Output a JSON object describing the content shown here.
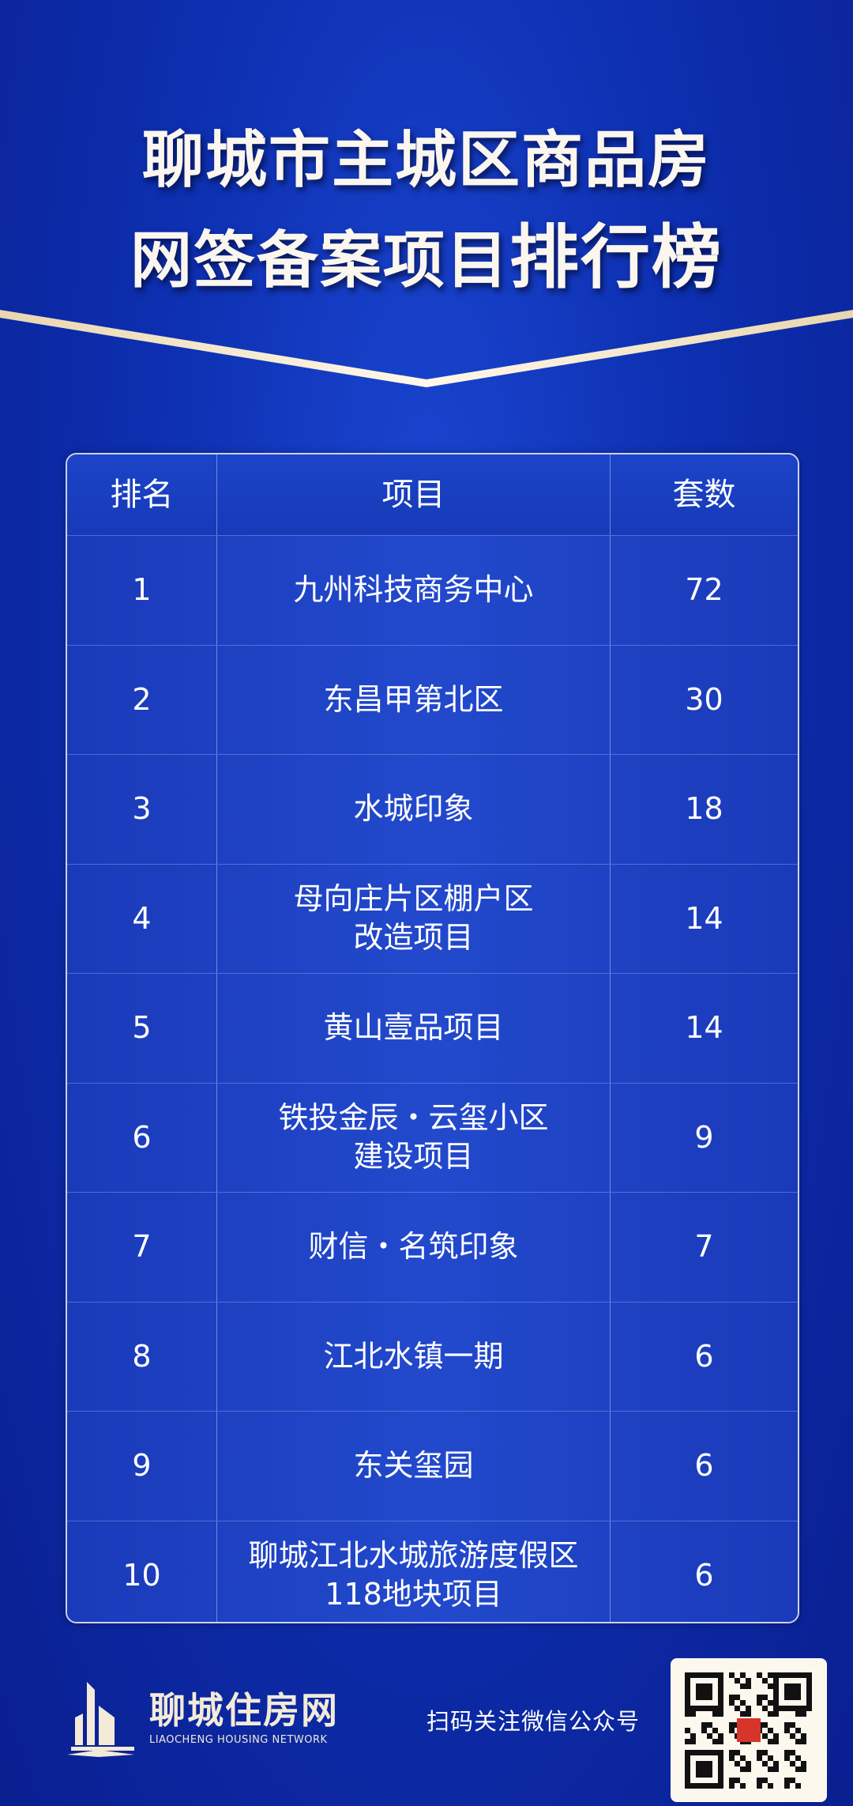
{
  "header": {
    "title_line1": "聊城市主城区商品房",
    "title_line2_a": "网签备案项目",
    "title_line2_b": "排行榜"
  },
  "table": {
    "columns": [
      "排名",
      "项目",
      "套数"
    ],
    "rows": [
      {
        "rank": "1",
        "project": "九州科技商务中心",
        "units": "72"
      },
      {
        "rank": "2",
        "project": "东昌甲第北区",
        "units": "30"
      },
      {
        "rank": "3",
        "project": "水城印象",
        "units": "18"
      },
      {
        "rank": "4",
        "project": "母向庄片区棚户区\n改造项目",
        "units": "14"
      },
      {
        "rank": "5",
        "project": "黄山壹品项目",
        "units": "14"
      },
      {
        "rank": "6",
        "project": "铁投金辰・云玺小区\n建设项目",
        "units": "9"
      },
      {
        "rank": "7",
        "project": "财信・名筑印象",
        "units": "7"
      },
      {
        "rank": "8",
        "project": "江北水镇一期",
        "units": "6"
      },
      {
        "rank": "9",
        "project": "东关玺园",
        "units": "6"
      },
      {
        "rank": "10",
        "project": "聊城江北水城旅游度假区\n118地块项目",
        "units": "6"
      }
    ]
  },
  "footer": {
    "logo_cn": "聊城住房网",
    "logo_en": "LIAOCHENG HOUSING NETWORK",
    "scan_text": "扫码关注微信公众号",
    "qr_icon": "qr-code"
  },
  "colors": {
    "background": "#0d2fb0",
    "accent_gold": "#f0e2c4",
    "title": "#fbf6ee"
  }
}
